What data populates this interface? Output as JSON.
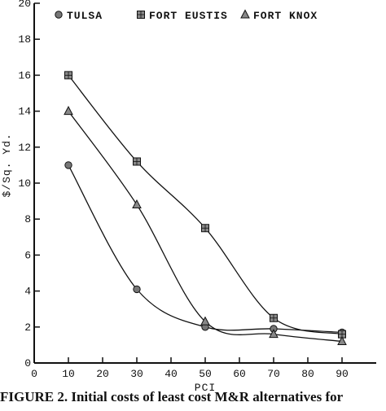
{
  "chart_data": {
    "type": "line",
    "xlabel": "PCI",
    "ylabel": "$/Sq. Yd.",
    "xlim": [
      0,
      100
    ],
    "ylim": [
      0,
      20
    ],
    "x_ticks": [
      0,
      10,
      20,
      30,
      40,
      50,
      60,
      70,
      80,
      90
    ],
    "y_ticks": [
      0,
      2,
      4,
      6,
      8,
      10,
      12,
      14,
      16,
      18,
      20
    ],
    "grid": false,
    "legend_position": "top",
    "x": [
      10,
      30,
      50,
      70,
      90
    ],
    "series": [
      {
        "name": "TULSA",
        "marker": "circle",
        "values": [
          11.0,
          4.1,
          2.0,
          1.9,
          1.7
        ]
      },
      {
        "name": "FORT EUSTIS",
        "marker": "square",
        "values": [
          16.0,
          11.2,
          7.5,
          2.5,
          1.6
        ]
      },
      {
        "name": "FORT KNOX",
        "marker": "triangle",
        "values": [
          14.0,
          8.8,
          2.3,
          1.6,
          1.2
        ]
      }
    ]
  },
  "caption": "FIGURE 2.  Initial costs of least cost M&R alternatives for"
}
